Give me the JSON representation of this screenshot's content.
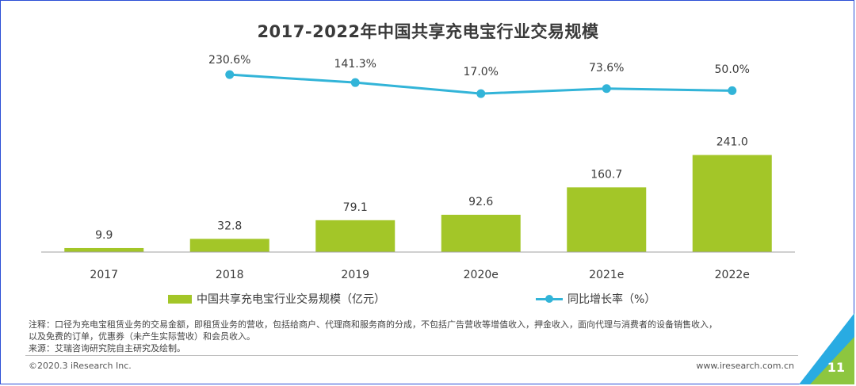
{
  "title": "2017-2022年中国共享充电宝行业交易规模",
  "chart_data": {
    "type": "bar+line",
    "categories": [
      "2017",
      "2018",
      "2019",
      "2020e",
      "2021e",
      "2022e"
    ],
    "series": [
      {
        "name": "中国共享充电宝行业交易规模（亿元）",
        "type": "bar",
        "values": [
          9.9,
          32.8,
          79.1,
          92.6,
          160.7,
          241.0
        ],
        "labels": [
          "9.9",
          "32.8",
          "79.1",
          "92.6",
          "160.7",
          "241.0"
        ],
        "color": "#a3c628"
      },
      {
        "name": "同比增长率（%）",
        "type": "line",
        "values": [
          null,
          230.6,
          141.3,
          17.0,
          73.6,
          50.0
        ],
        "labels": [
          "",
          "230.6%",
          "141.3%",
          "17.0%",
          "73.6%",
          "50.0%"
        ],
        "color": "#32b4d8"
      }
    ],
    "legend": [
      "中国共享充电宝行业交易规模（亿元）",
      "同比增长率（%）"
    ]
  },
  "notes": {
    "line1": "注释：口径为充电宝租赁业务的交易金额，即租赁业务的营收，包括给商户、代理商和服务商的分成，不包括广告营收等增值收入，押金收入，面向代理与消费者的设备销售收入，",
    "line2": "以及免费的订单，优惠券（未产生实际营收）和会员收入。",
    "line3": "来源：艾瑞咨询研究院自主研究及绘制。"
  },
  "footer": {
    "copyright": "©2020.3 iResearch Inc.",
    "website": "www.iresearch.com.cn",
    "page_number": "11"
  },
  "colors": {
    "bar": "#a3c628",
    "line": "#32b4d8",
    "corner_green": "#8dc63f",
    "corner_blue": "#29abe2"
  }
}
